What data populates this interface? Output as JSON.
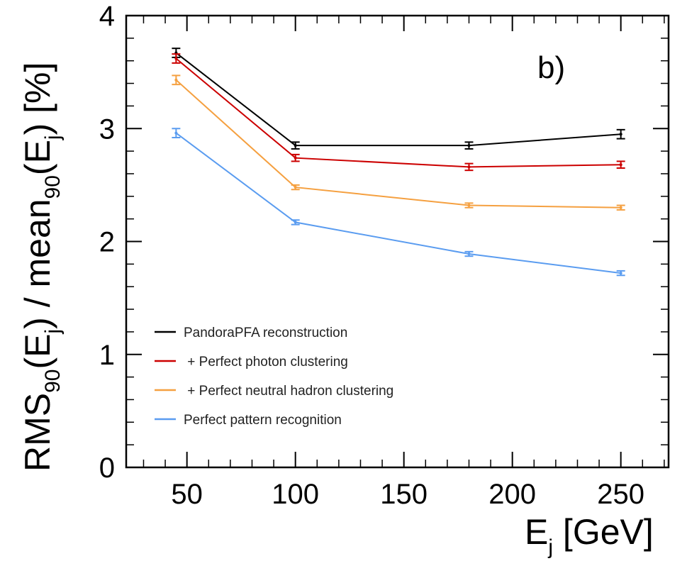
{
  "chart_data": {
    "type": "line",
    "panel_label": "b)",
    "xlabel": {
      "main": "E",
      "sub": "j",
      "tail": " [GeV]"
    },
    "ylabel": {
      "p1": "RMS",
      "s1": "90",
      "p2": "(E",
      "s2": "j",
      "p3": ") / mean",
      "s3": "90",
      "p4": "(E",
      "s4": "j",
      "p5": ") [%]"
    },
    "xlim": [
      22,
      272
    ],
    "ylim": [
      0,
      4
    ],
    "x_ticks": [
      50,
      100,
      150,
      200,
      250
    ],
    "x_tick_labels": [
      "50",
      "100",
      "150",
      "200",
      "250"
    ],
    "y_ticks": [
      0,
      1,
      2,
      3,
      4
    ],
    "y_tick_labels": [
      "0",
      "1",
      "2",
      "3",
      "4"
    ],
    "grid": false,
    "legend_position": "bottom-left",
    "x": [
      45,
      100,
      180,
      250
    ],
    "series": [
      {
        "name": "PandoraPFA reconstruction",
        "color": "#000000",
        "values": [
          3.67,
          2.85,
          2.85,
          2.95
        ],
        "errors": [
          0.04,
          0.03,
          0.03,
          0.04
        ]
      },
      {
        "name": " + Perfect photon clustering",
        "color": "#cc0000",
        "values": [
          3.62,
          2.74,
          2.66,
          2.68
        ],
        "errors": [
          0.04,
          0.03,
          0.03,
          0.03
        ]
      },
      {
        "name": " + Perfect neutral hadron clustering",
        "color": "#f5a040",
        "values": [
          3.43,
          2.48,
          2.32,
          2.3
        ],
        "errors": [
          0.04,
          0.02,
          0.02,
          0.02
        ]
      },
      {
        "name": "Perfect pattern recognition",
        "color": "#5a9cf0",
        "values": [
          2.96,
          2.17,
          1.89,
          1.72
        ],
        "errors": [
          0.04,
          0.02,
          0.02,
          0.02
        ]
      }
    ]
  }
}
